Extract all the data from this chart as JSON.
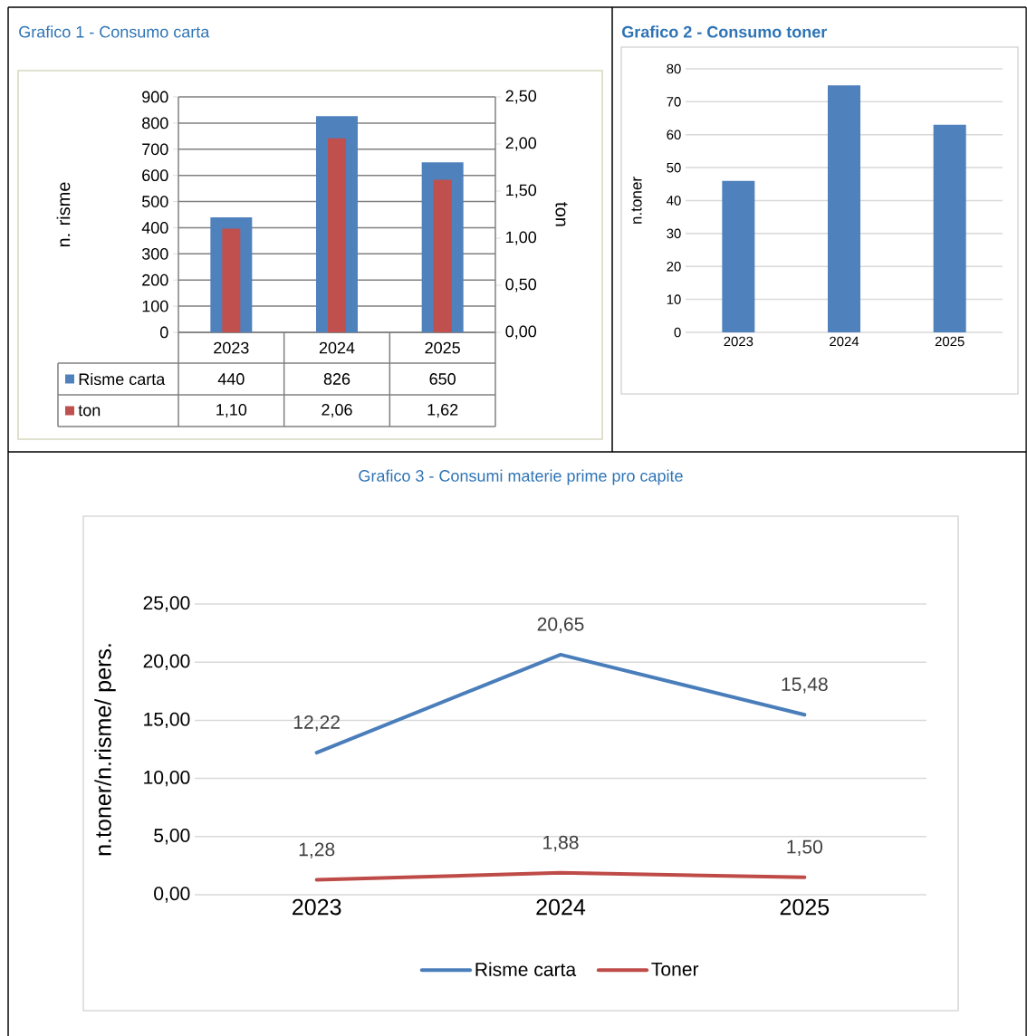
{
  "chart_data": [
    {
      "type": "bar",
      "title": "Grafico 1 - Consumo carta",
      "ylabel": "n. risme",
      "y2label": "ton",
      "categories": [
        "2023",
        "2024",
        "2025"
      ],
      "series": [
        {
          "name": "Risme carta",
          "color": "#4f81bd",
          "values": [
            440,
            826,
            650
          ],
          "value_labels": [
            "440",
            "826",
            "650"
          ]
        },
        {
          "name": "ton",
          "color": "#c0504d",
          "axis": "y2",
          "values": [
            1.1,
            2.06,
            1.62
          ],
          "value_labels": [
            "1,10",
            "2,06",
            "1,62"
          ]
        }
      ],
      "ylim": [
        0,
        900
      ],
      "yticks": [
        0,
        100,
        200,
        300,
        400,
        500,
        600,
        700,
        800,
        900
      ],
      "y2lim": [
        0,
        2.5
      ],
      "y2ticks": [
        {
          "value": 0,
          "label": "0,00"
        },
        {
          "value": 0.5,
          "label": "0,50"
        },
        {
          "value": 1,
          "label": "1,00"
        },
        {
          "value": 1.5,
          "label": "1,50"
        },
        {
          "value": 2,
          "label": "2,00"
        },
        {
          "value": 2.5,
          "label": "2,50"
        }
      ],
      "grid": "y",
      "legend": "bottom"
    },
    {
      "type": "bar",
      "title": "Grafico 2 - Consumo toner",
      "ylabel": "n.toner",
      "categories": [
        "2023",
        "2024",
        "2025"
      ],
      "series": [
        {
          "color": "#4f81bd",
          "values": [
            46,
            75,
            63
          ]
        }
      ],
      "ylim": [
        0,
        80
      ],
      "yticks": [
        0,
        10,
        20,
        30,
        40,
        50,
        60,
        70,
        80
      ],
      "grid": "y"
    },
    {
      "type": "line",
      "title": "Grafico 3 - Consumi materie prime pro capite",
      "ylabel": "n.toner/n.risme/ pers.",
      "categories": [
        "2023",
        "2024",
        "2025"
      ],
      "series": [
        {
          "name": "Risme carta",
          "color": "#4a7ebb",
          "values": [
            12.22,
            20.65,
            15.48
          ],
          "value_labels": [
            "12,22",
            "20,65",
            "15,48"
          ]
        },
        {
          "name": "Toner",
          "color": "#be4b48",
          "values": [
            1.28,
            1.88,
            1.5
          ],
          "value_labels": [
            "1,28",
            "1,88",
            "1,50"
          ]
        }
      ],
      "ylim": [
        0,
        25
      ],
      "yticks": [
        {
          "value": 0,
          "label": "0,00"
        },
        {
          "value": 5,
          "label": "5,00"
        },
        {
          "value": 10,
          "label": "10,00"
        },
        {
          "value": 15,
          "label": "15,00"
        },
        {
          "value": 20,
          "label": "20,00"
        },
        {
          "value": 25,
          "label": "25,00"
        }
      ],
      "grid": "y",
      "legend": "bottom"
    }
  ]
}
